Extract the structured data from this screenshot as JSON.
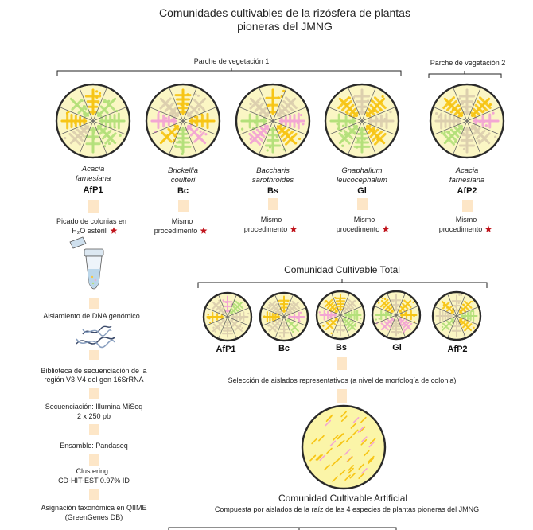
{
  "title": {
    "line1": "Comunidades cultivables de la rizósfera de plantas",
    "line2": "pioneras del JMNG"
  },
  "patches": {
    "patch1": "Parche de vegetación 1",
    "patch2": "Parche de vegetación 2"
  },
  "plants": [
    {
      "name1": "Acacia",
      "name2": "farnesiana",
      "code": "AfP1"
    },
    {
      "name1": "Brickellia",
      "name2": "coulteri",
      "code": "Bc"
    },
    {
      "name1": "Baccharis",
      "name2": "sarothroides",
      "code": "Bs"
    },
    {
      "name1": "Gnaphalium",
      "name2": "leucocephalum",
      "code": "Gl"
    },
    {
      "name1": "Acacia",
      "name2": "farnesiana",
      "code": "AfP2"
    }
  ],
  "procedure": {
    "first_line1": "Picado de colonias en",
    "first_line2": "H₂O estéril",
    "same1": "Mismo",
    "same2": "procedimento"
  },
  "pipeline": [
    {
      "lines": [
        "Aislamiento de DNA genómico"
      ]
    },
    {
      "lines": [
        "Biblioteca de secuenciación de la",
        "región V3-V4 del gen 16SrRNA"
      ]
    },
    {
      "lines": [
        "Secuenciación: Illumina MiSeq",
        "2 x 250 pb"
      ]
    },
    {
      "lines": [
        "Ensamble: Pandaseq"
      ]
    },
    {
      "lines": [
        "Clustering:",
        "CD-HIT-EST 0.97% ID"
      ]
    },
    {
      "lines": [
        "Asignación taxonómica en QIIME",
        "(GreenGenes DB)"
      ]
    }
  ],
  "total": {
    "title": "Comunidad Cultivable Total",
    "codes": [
      "AfP1",
      "Bc",
      "Bs",
      "Gl",
      "AfP2"
    ]
  },
  "selection": "Selección de aislados representativos (a nivel de morfología de colonia)",
  "artificial": {
    "title": "Comunidad Cultivable Artificial",
    "subtitle": "Compuesta por aislados de la raíz de las 4 especies de plantas pioneras del JMNG"
  },
  "colors": {
    "plate_fill": "#fbf6c4",
    "plate_border": "#2a2a2a",
    "arrow": "#fde6c7",
    "star": "#c0141c",
    "colony_yellow": "#f7c515",
    "colony_pink": "#f3a6d3",
    "colony_green": "#b4e07a",
    "colony_tan": "#dccfae"
  }
}
